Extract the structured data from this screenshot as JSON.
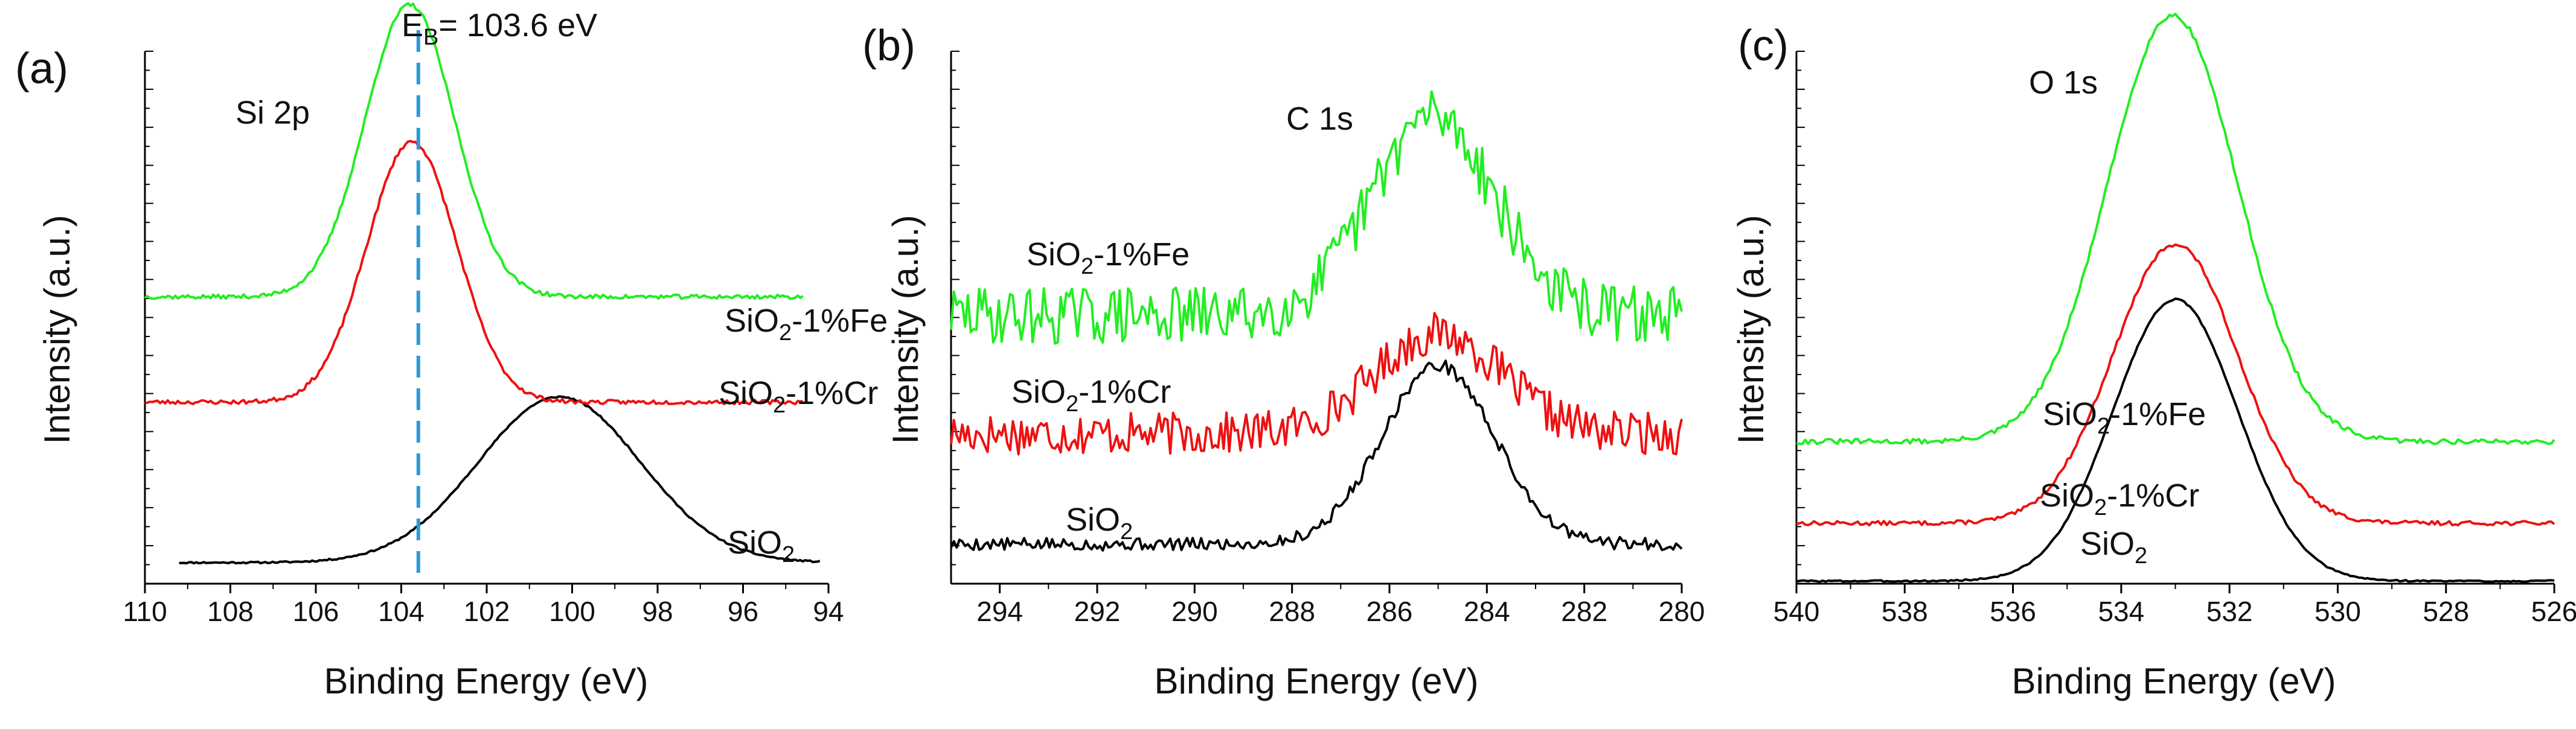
{
  "figure": {
    "background": "#ffffff"
  },
  "chart_data": [
    {
      "type": "line",
      "panel_label": "(a)",
      "peak_label": "Si 2p",
      "xlabel": "Binding Energy (eV)",
      "ylabel": "Intensity (a.u.)",
      "xlim": [
        110,
        94
      ],
      "ylim": [
        0,
        1
      ],
      "xticks": [
        110,
        108,
        106,
        104,
        102,
        100,
        98,
        96,
        94
      ],
      "grid": false,
      "reference_line": {
        "x": 103.6,
        "color": "#2a9bd8",
        "style": "dashed",
        "label_main": "E",
        "label_sub": "B",
        "label_rest": "= 103.6 eV"
      },
      "series": [
        {
          "name": "SiO2",
          "label_main": "SiO",
          "label_sub": "2",
          "label_rest": "",
          "color": "#000000",
          "peak_center": 100.3,
          "baseline": 0.04,
          "amplitude": 0.315,
          "sigma": 1.9,
          "x_start": 109.2,
          "x_end": 94.2,
          "noise": 0.0015,
          "seed": 11
        },
        {
          "name": "SiO2-1%Cr",
          "label_main": "SiO",
          "label_sub": "2",
          "label_rest": "-1%Cr",
          "color": "#ee1111",
          "peak_center": 103.75,
          "baseline": 0.345,
          "amplitude": 0.495,
          "sigma": 1.05,
          "x_start": 110.0,
          "x_end": 94.6,
          "noise": 0.004,
          "seed": 23
        },
        {
          "name": "SiO2-1%Fe",
          "label_main": "SiO",
          "label_sub": "2",
          "label_rest": "-1%Fe",
          "color": "#22ee22",
          "peak_center": 103.8,
          "baseline": 0.545,
          "amplitude": 0.555,
          "sigma": 1.05,
          "x_start": 110.0,
          "x_end": 94.6,
          "noise": 0.004,
          "seed": 37
        }
      ]
    },
    {
      "type": "line",
      "panel_label": "(b)",
      "peak_label": "C 1s",
      "xlabel": "Binding Energy (eV)",
      "ylabel": "Intensity (a.u.)",
      "xlim": [
        295,
        280
      ],
      "ylim": [
        0,
        1
      ],
      "xticks": [
        294,
        292,
        290,
        288,
        286,
        284,
        282,
        280
      ],
      "grid": false,
      "series": [
        {
          "name": "SiO2",
          "label_main": "SiO",
          "label_sub": "2",
          "label_rest": "",
          "color": "#000000",
          "peak_center": 285.0,
          "baseline": 0.075,
          "amplitude": 0.34,
          "sigma": 1.15,
          "x_start": 295.0,
          "x_end": 280.0,
          "noise": 0.012,
          "seed": 5
        },
        {
          "name": "SiO2-1%Cr",
          "label_main": "SiO",
          "label_sub": "2",
          "label_rest": "-1%Cr",
          "color": "#ee1111",
          "peak_center": 285.0,
          "baseline": 0.285,
          "amplitude": 0.19,
          "sigma": 1.3,
          "x_start": 295.0,
          "x_end": 280.0,
          "noise": 0.04,
          "seed": 17
        },
        {
          "name": "SiO2-1%Fe",
          "label_main": "SiO",
          "label_sub": "2",
          "label_rest": "-1%Fe",
          "color": "#22ee22",
          "peak_center": 285.1,
          "baseline": 0.51,
          "amplitude": 0.38,
          "sigma": 1.25,
          "x_start": 295.0,
          "x_end": 280.0,
          "noise": 0.055,
          "seed": 29
        }
      ]
    },
    {
      "type": "line",
      "panel_label": "(c)",
      "peak_label": "O 1s",
      "xlabel": "Binding Energy (eV)",
      "ylabel": "Intensity (a.u.)",
      "xlim": [
        540,
        526
      ],
      "ylim": [
        0,
        1
      ],
      "xticks": [
        540,
        538,
        536,
        534,
        532,
        530,
        528,
        526
      ],
      "grid": false,
      "series": [
        {
          "name": "SiO2",
          "label_main": "SiO",
          "label_sub": "2",
          "label_rest": "",
          "color": "#000000",
          "peak_center": 533.0,
          "baseline": 0.005,
          "amplitude": 0.535,
          "sigma": 1.15,
          "x_start": 540.0,
          "x_end": 526.0,
          "noise": 0.0015,
          "seed": 3
        },
        {
          "name": "SiO2-1%Cr",
          "label_main": "SiO",
          "label_sub": "2",
          "label_rest": "-1%Cr",
          "color": "#ee1111",
          "peak_center": 533.0,
          "baseline": 0.115,
          "amplitude": 0.53,
          "sigma": 1.15,
          "x_start": 540.0,
          "x_end": 526.0,
          "noise": 0.004,
          "seed": 13
        },
        {
          "name": "SiO2-1%Fe",
          "label_main": "SiO",
          "label_sub": "2",
          "label_rest": "-1%Fe",
          "color": "#22ee22",
          "peak_center": 533.05,
          "baseline": 0.27,
          "amplitude": 0.81,
          "sigma": 1.2,
          "x_start": 540.0,
          "x_end": 526.0,
          "noise": 0.005,
          "seed": 31
        }
      ]
    }
  ]
}
